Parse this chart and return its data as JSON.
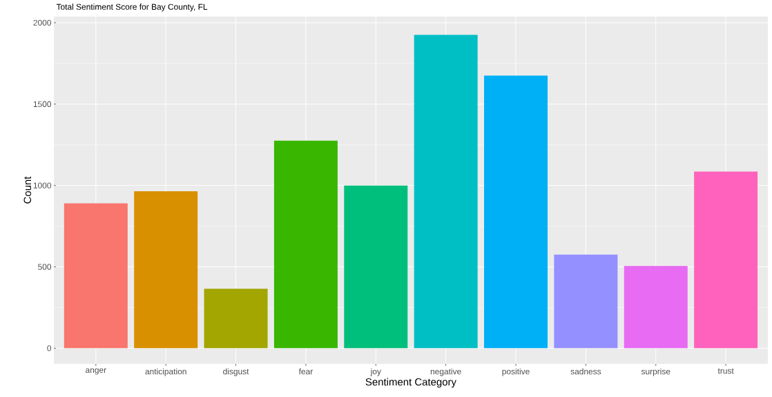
{
  "chart_data": {
    "type": "bar",
    "title": "Total Sentiment Score for Bay County, FL",
    "xlabel": "Sentiment Category",
    "ylabel": "Count",
    "categories": [
      "anger",
      "anticipation",
      "disgust",
      "fear",
      "joy",
      "negative",
      "positive",
      "sadness",
      "surprise",
      "trust"
    ],
    "values": [
      890,
      965,
      365,
      1275,
      1000,
      1925,
      1675,
      575,
      505,
      1085
    ],
    "colors": [
      "#F8766D",
      "#D89000",
      "#A3A500",
      "#39B600",
      "#00BF7D",
      "#00BFC4",
      "#00B0F6",
      "#9590FF",
      "#E76BF3",
      "#FF62BC"
    ],
    "ylim": [
      -96,
      2038
    ],
    "yticks": [
      0,
      500,
      1000,
      1500,
      2000
    ],
    "grid": true
  }
}
